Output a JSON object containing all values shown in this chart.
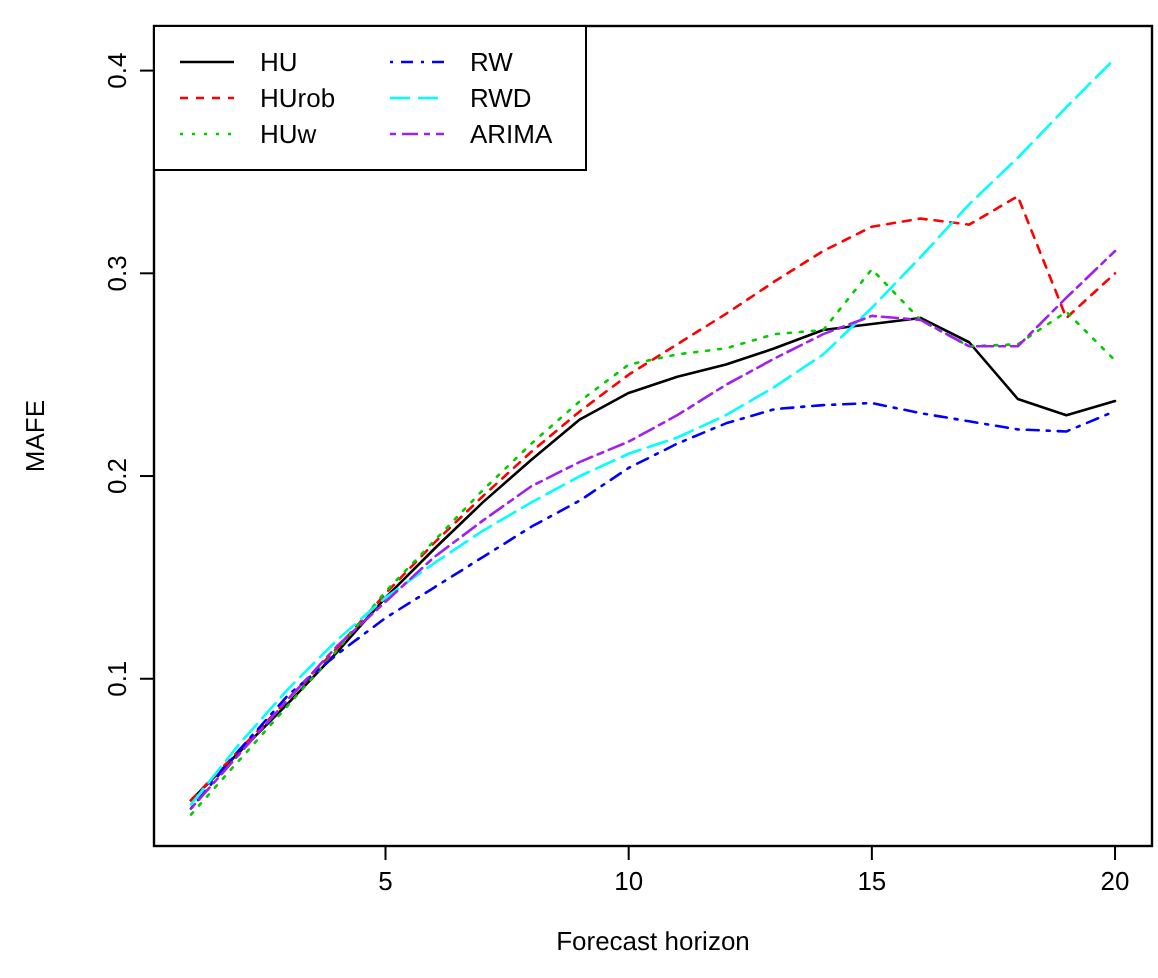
{
  "chart_data": {
    "type": "line",
    "xlabel": "Forecast horizon",
    "ylabel": "MAFE",
    "x": [
      1,
      2,
      3,
      4,
      5,
      6,
      7,
      8,
      9,
      10,
      11,
      12,
      13,
      14,
      15,
      16,
      17,
      18,
      19,
      20
    ],
    "xlim": [
      0.24,
      20.76
    ],
    "ylim": [
      0.0175,
      0.422
    ],
    "xticks": [
      5,
      10,
      15,
      20
    ],
    "yticks": [
      0.1,
      0.2,
      0.3,
      0.4
    ],
    "legend": "top left",
    "grid": false,
    "marker": "none",
    "series": [
      {
        "name": "HU",
        "color": "#000000",
        "line_style": "solid",
        "values": [
          0.04,
          0.064,
          0.088,
          0.113,
          0.14,
          0.164,
          0.187,
          0.208,
          0.228,
          0.241,
          0.249,
          0.255,
          0.263,
          0.272,
          0.275,
          0.278,
          0.266,
          0.238,
          0.23,
          0.237
        ]
      },
      {
        "name": "HUrob",
        "color": "#ff0000",
        "line_style": "dashed",
        "values": [
          0.04,
          0.065,
          0.09,
          0.115,
          0.142,
          0.167,
          0.19,
          0.212,
          0.232,
          0.25,
          0.265,
          0.28,
          0.296,
          0.311,
          0.323,
          0.327,
          0.324,
          0.338,
          0.278,
          0.3
        ]
      },
      {
        "name": "HUw",
        "color": "#00cd00",
        "line_style": "dotted",
        "values": [
          0.033,
          0.06,
          0.087,
          0.114,
          0.143,
          0.168,
          0.193,
          0.216,
          0.237,
          0.255,
          0.26,
          0.263,
          0.27,
          0.272,
          0.302,
          0.277,
          0.264,
          0.265,
          0.281,
          0.257
        ]
      },
      {
        "name": "RW",
        "color": "#0000ff",
        "line_style": "dashdot",
        "values": [
          0.036,
          0.065,
          0.092,
          0.112,
          0.13,
          0.145,
          0.16,
          0.175,
          0.188,
          0.204,
          0.216,
          0.226,
          0.233,
          0.235,
          0.236,
          0.231,
          0.227,
          0.223,
          0.222,
          0.232
        ]
      },
      {
        "name": "RWD",
        "color": "#00ffff",
        "line_style": "longdash",
        "values": [
          0.038,
          0.068,
          0.095,
          0.119,
          0.14,
          0.157,
          0.173,
          0.187,
          0.2,
          0.211,
          0.219,
          0.23,
          0.244,
          0.26,
          0.283,
          0.308,
          0.334,
          0.357,
          0.382,
          0.406
        ]
      },
      {
        "name": "ARIMA",
        "color": "#a020f0",
        "line_style": "twodash",
        "values": [
          0.036,
          0.063,
          0.09,
          0.116,
          0.138,
          0.16,
          0.178,
          0.195,
          0.207,
          0.217,
          0.23,
          0.245,
          0.258,
          0.27,
          0.279,
          0.277,
          0.264,
          0.264,
          0.288,
          0.311
        ]
      }
    ]
  }
}
